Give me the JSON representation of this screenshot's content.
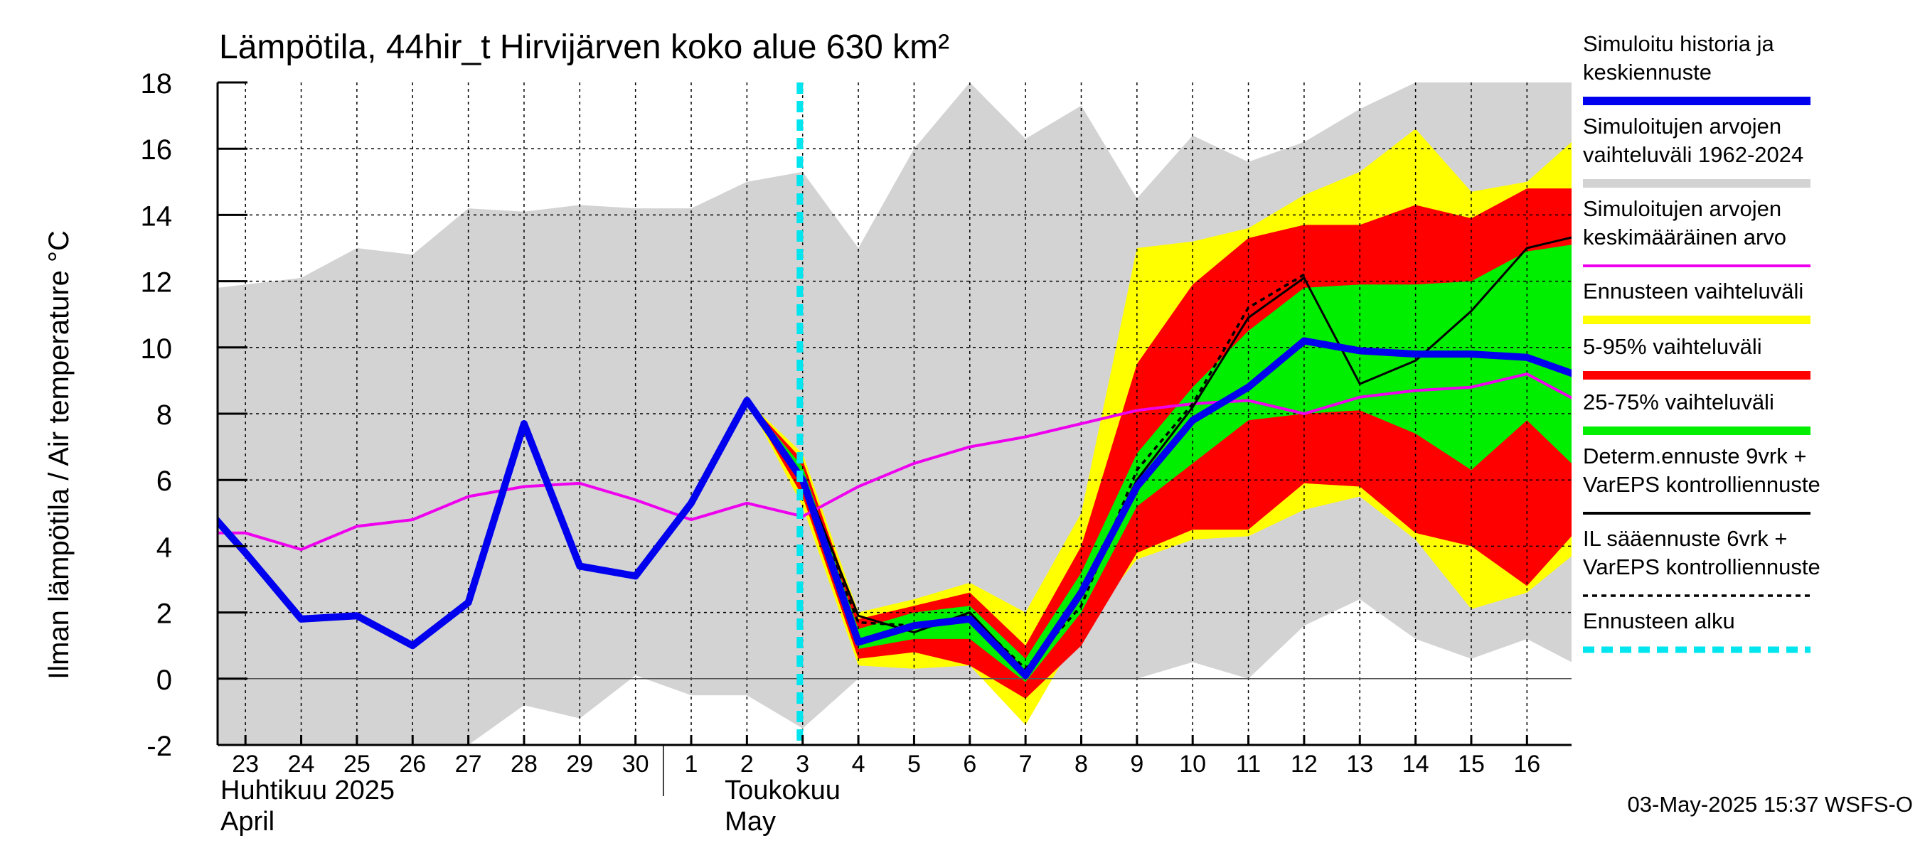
{
  "chart_data": {
    "type": "line",
    "title": "Lämpötila, 44hir_t Hirvijärven koko alue 630 km²",
    "ylabel": "Ilman lämpötila / Air temperature   °C",
    "ylim": [
      -2,
      18
    ],
    "yticks": [
      "-2",
      "0",
      "2",
      "4",
      "6",
      "8",
      "10",
      "12",
      "14",
      "16",
      "18"
    ],
    "x_tick_labels": [
      "23",
      "24",
      "25",
      "26",
      "27",
      "28",
      "29",
      "30",
      "1",
      "2",
      "3",
      "4",
      "5",
      "6",
      "7",
      "8",
      "9",
      "10",
      "11",
      "12",
      "13",
      "14",
      "15",
      "16"
    ],
    "x_days": [
      23,
      24,
      25,
      26,
      27,
      28,
      29,
      30,
      31,
      32,
      33,
      34,
      35,
      36,
      37,
      38,
      39,
      40,
      41,
      42,
      43,
      44,
      45,
      46
    ],
    "x_unit": "day of April/May 2025 (1 May = 31)",
    "month_labels": [
      {
        "line1": "Huhtikuu  2025",
        "line2": "April"
      },
      {
        "line1": "Toukokuu",
        "line2": "May"
      }
    ],
    "forecast_start": 32.95,
    "series": [
      {
        "name": "Simuloitujen arvojen vaihteluväli 1962-2024",
        "kind": "band",
        "color": "#d3d3d3",
        "x": [
          22,
          23,
          24,
          25,
          26,
          27,
          28,
          29,
          30,
          31,
          32,
          33,
          34,
          35,
          36,
          37,
          38,
          39,
          40,
          41,
          42,
          43,
          44,
          45,
          46,
          47
        ],
        "upper": [
          11.8,
          11.9,
          12.1,
          13.0,
          12.8,
          14.2,
          14.1,
          14.3,
          14.2,
          14.2,
          15.0,
          15.3,
          13.0,
          16.0,
          18.0,
          16.3,
          17.3,
          14.5,
          16.4,
          15.6,
          16.2,
          17.2,
          18.0,
          18.0,
          18.0,
          18.0
        ],
        "lower": [
          -2.1,
          -2.0,
          -2.0,
          -2.0,
          -2.0,
          -2.0,
          -0.8,
          -1.2,
          0.1,
          -0.5,
          -0.5,
          -1.5,
          0.0,
          0.0,
          0.0,
          0.0,
          0.0,
          0.0,
          0.5,
          0.0,
          1.6,
          2.4,
          1.2,
          0.6,
          1.2,
          0.5
        ]
      },
      {
        "name": "Ennusteen vaihteluväli",
        "kind": "band",
        "color": "#ffff00",
        "x": [
          32,
          33,
          34,
          35,
          36,
          37,
          38,
          39,
          40,
          41,
          42,
          43,
          44,
          45,
          46,
          47
        ],
        "upper": [
          8.4,
          6.8,
          2.0,
          2.4,
          2.9,
          2.0,
          5.0,
          13.0,
          13.2,
          13.6,
          14.6,
          15.3,
          16.6,
          14.7,
          15.0,
          16.2
        ],
        "lower": [
          8.4,
          5.2,
          0.4,
          0.3,
          0.4,
          -1.4,
          1.5,
          3.6,
          4.2,
          4.3,
          5.1,
          5.5,
          4.2,
          2.1,
          2.6,
          3.7
        ]
      },
      {
        "name": "5-95% vaihteluväli",
        "kind": "band",
        "color": "#ff0000",
        "x": [
          32,
          33,
          34,
          35,
          36,
          37,
          38,
          39,
          40,
          41,
          42,
          43,
          44,
          45,
          46,
          47
        ],
        "upper": [
          8.4,
          6.6,
          1.8,
          2.2,
          2.6,
          1.0,
          4.0,
          9.5,
          11.9,
          13.3,
          13.7,
          13.7,
          14.3,
          13.9,
          14.8,
          14.8
        ],
        "lower": [
          8.4,
          5.5,
          0.6,
          0.8,
          0.4,
          -0.6,
          1.0,
          3.8,
          4.5,
          4.5,
          5.9,
          5.8,
          4.4,
          4.0,
          2.8,
          4.3
        ]
      },
      {
        "name": "25-75% vaihteluväli",
        "kind": "band",
        "color": "#00ee00",
        "x": [
          32,
          33,
          34,
          35,
          36,
          37,
          38,
          39,
          40,
          41,
          42,
          43,
          44,
          45,
          46,
          47
        ],
        "upper": [
          8.4,
          6.4,
          1.5,
          2.0,
          2.2,
          0.6,
          3.2,
          6.8,
          8.8,
          10.5,
          11.8,
          11.9,
          11.9,
          12.0,
          12.9,
          13.1
        ],
        "lower": [
          8.4,
          5.8,
          0.9,
          1.2,
          1.2,
          -0.1,
          2.0,
          5.2,
          6.5,
          7.8,
          8.0,
          8.1,
          7.4,
          6.3,
          7.8,
          6.5
        ]
      },
      {
        "name": "Simuloitujen arvojen keskimääräinen arvo",
        "kind": "line",
        "color": "#ee00ee",
        "x": [
          22,
          23,
          24,
          25,
          26,
          27,
          28,
          29,
          30,
          31,
          32,
          33,
          34,
          35,
          36,
          37,
          38,
          39,
          40,
          41,
          42,
          43,
          44,
          45,
          46,
          47
        ],
        "y": [
          4.4,
          4.4,
          3.9,
          4.6,
          4.8,
          5.5,
          5.8,
          5.9,
          5.4,
          4.8,
          5.3,
          4.9,
          5.8,
          6.5,
          7.0,
          7.3,
          7.7,
          8.1,
          8.3,
          8.4,
          8.0,
          8.5,
          8.7,
          8.8,
          9.2,
          8.3
        ]
      },
      {
        "name": "Determ.ennuste 9vrk + VarEPS kontrolliennuste",
        "kind": "line",
        "color": "#000000",
        "x": [
          31,
          32,
          33,
          34,
          35,
          36,
          37,
          38,
          39,
          40,
          41,
          42,
          43,
          44,
          45,
          46,
          47
        ],
        "y": [
          5.3,
          8.4,
          6.1,
          1.9,
          1.4,
          2.0,
          0.2,
          2.6,
          6.0,
          8.2,
          10.9,
          12.1,
          8.9,
          9.6,
          11.1,
          13.0,
          13.4
        ]
      },
      {
        "name": "IL sääennuste 6vrk + VarEPS kontrolliennuste",
        "kind": "dashed",
        "color": "#000000",
        "x": [
          31,
          32,
          33,
          34,
          35,
          36,
          37,
          38,
          39,
          40,
          41,
          42
        ],
        "y": [
          5.3,
          8.4,
          5.9,
          1.7,
          1.6,
          1.9,
          0.3,
          2.2,
          6.3,
          8.3,
          11.2,
          12.2
        ]
      },
      {
        "name": "Simuloitu historia ja keskiennuste",
        "kind": "thick",
        "color": "#0000ee",
        "x": [
          22,
          23,
          24,
          25,
          26,
          27,
          28,
          29,
          30,
          31,
          32,
          33,
          34,
          35,
          36,
          37,
          38,
          39,
          40,
          41,
          42,
          43,
          44,
          45,
          46,
          47
        ],
        "y": [
          5.7,
          3.8,
          1.8,
          1.9,
          1.0,
          2.3,
          7.7,
          3.4,
          3.1,
          5.3,
          8.4,
          6.0,
          1.1,
          1.6,
          1.8,
          0.1,
          2.6,
          5.8,
          7.8,
          8.8,
          10.2,
          9.9,
          9.8,
          9.8,
          9.7,
          9.1
        ]
      }
    ]
  },
  "legend": [
    {
      "line1": "Simuloitu historia ja",
      "line2": "keskiennuste",
      "color": "#0000ee",
      "style": "thick"
    },
    {
      "line1": "Simuloitujen arvojen",
      "line2": "vaihteluväli 1962-2024",
      "color": "#d3d3d3",
      "style": "thick"
    },
    {
      "line1": "Simuloitujen arvojen",
      "line2": "keskimääräinen arvo",
      "color": "#ee00ee",
      "style": "thin"
    },
    {
      "line1": "Ennusteen vaihteluväli",
      "line2": "",
      "color": "#ffff00",
      "style": "thick"
    },
    {
      "line1": "5-95% vaihteluväli",
      "line2": "",
      "color": "#ff0000",
      "style": "thick"
    },
    {
      "line1": "25-75% vaihteluväli",
      "line2": "",
      "color": "#00ee00",
      "style": "thick"
    },
    {
      "line1": "Determ.ennuste 9vrk +",
      "line2": "VarEPS kontrolliennuste",
      "color": "#000000",
      "style": "thin"
    },
    {
      "line1": "IL sääennuste 6vrk  +",
      "line2": "  VarEPS kontrolliennuste",
      "color": "#000000",
      "style": "dashed"
    },
    {
      "line1": "Ennusteen alku",
      "line2": "",
      "color": "#00e5ee",
      "style": "cyan-dashed"
    }
  ],
  "footer": "03-May-2025 15:37 WSFS-O"
}
